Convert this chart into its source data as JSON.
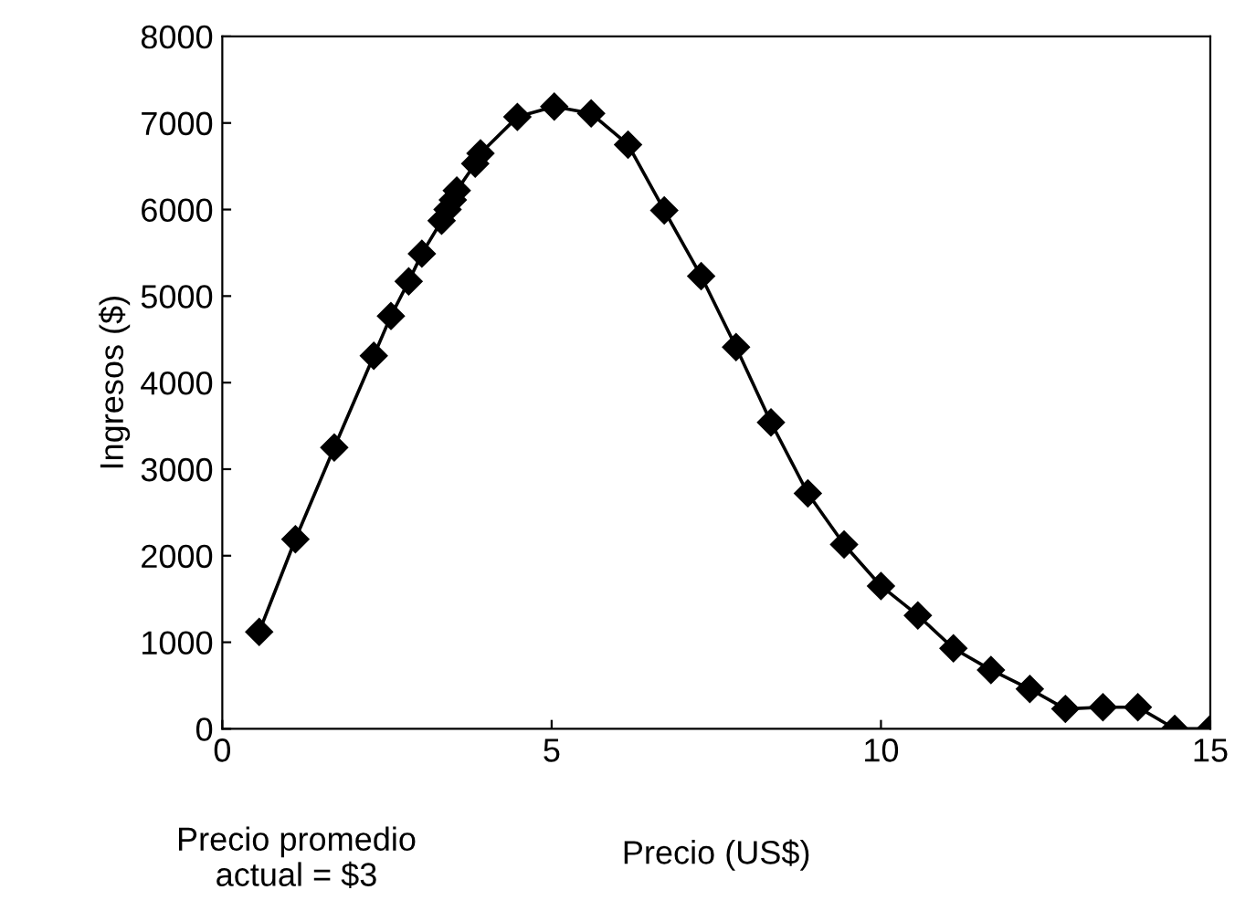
{
  "chart_data": {
    "type": "line",
    "xlabel": "Precio (US$)",
    "ylabel": "Ingresos ($)",
    "annotations": [
      "Precio promedio\nactual = $3"
    ],
    "xlim": [
      0,
      15
    ],
    "xticks": [
      0,
      5,
      10,
      15
    ],
    "ylim": [
      0,
      8000
    ],
    "yticks": [
      0,
      1000,
      2000,
      3000,
      4000,
      5000,
      6000,
      7000,
      8000
    ],
    "grid": false,
    "legend": false,
    "marker": "diamond",
    "line_style": "solid",
    "series": [
      {
        "color": "#000000",
        "x": [
          0.56,
          1.11,
          1.7,
          2.3,
          2.56,
          2.83,
          3.03,
          3.33,
          3.42,
          3.5,
          3.56,
          3.84,
          3.92,
          4.48,
          5.04,
          5.6,
          6.16,
          6.71,
          7.27,
          7.8,
          8.33,
          8.89,
          9.44,
          10.0,
          10.56,
          11.1,
          11.67,
          12.26,
          12.8,
          13.37,
          13.9,
          14.46,
          15.0
        ],
        "values": [
          1120,
          2190,
          3250,
          4310,
          4770,
          5170,
          5490,
          5870,
          6000,
          6110,
          6220,
          6530,
          6650,
          7070,
          7190,
          7110,
          6750,
          5990,
          5230,
          4410,
          3540,
          2720,
          2130,
          1650,
          1310,
          930,
          680,
          460,
          230,
          250,
          250,
          0,
          0
        ]
      }
    ]
  }
}
